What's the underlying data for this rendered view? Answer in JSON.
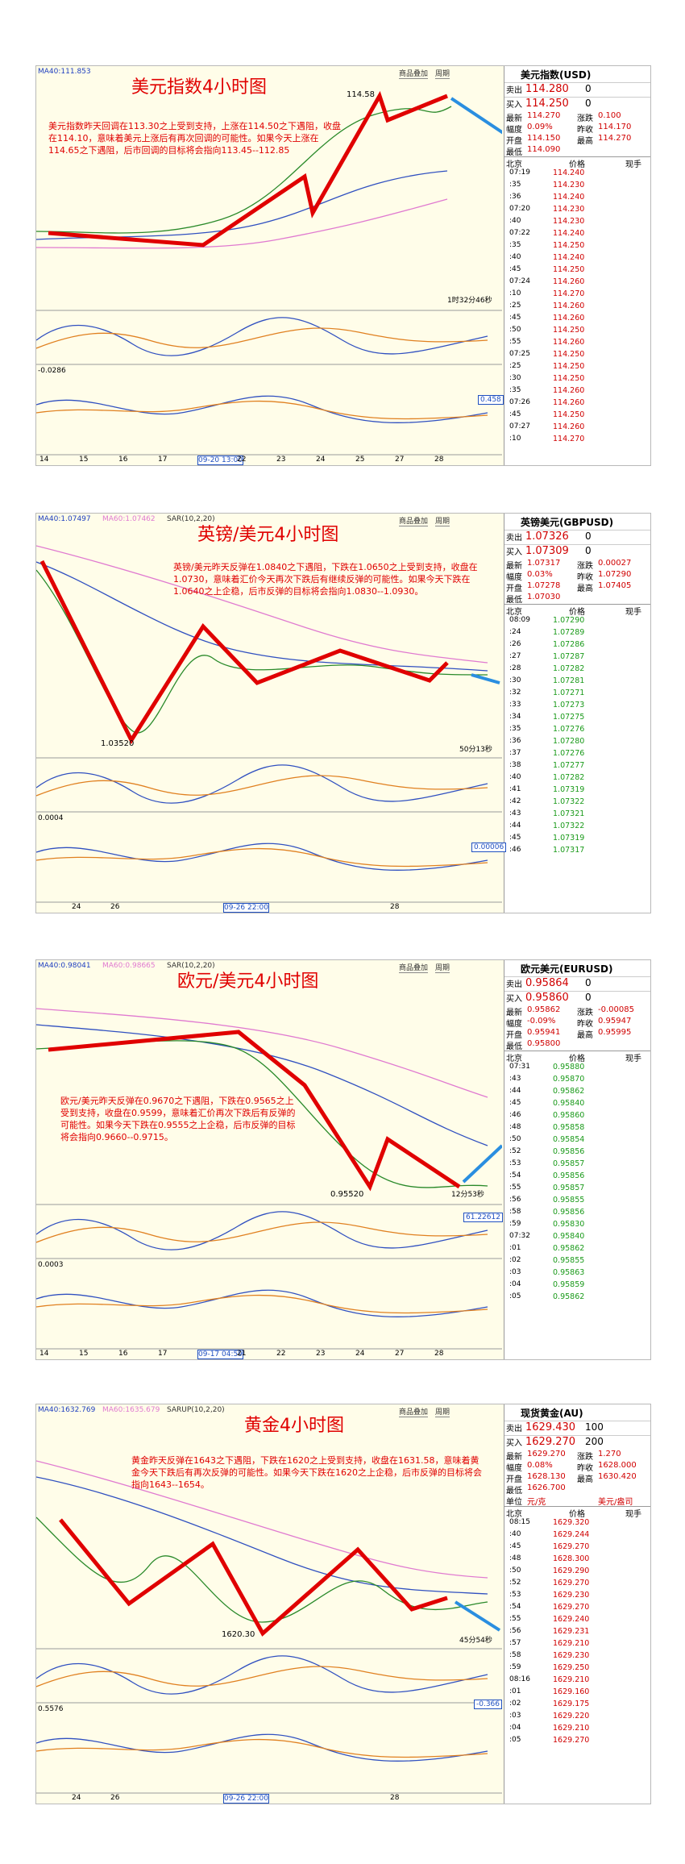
{
  "panels": [
    {
      "title": "美元指数4小时图",
      "indicators": [
        "MA40:111.853"
      ],
      "buttons": [
        "商品叠加",
        "周期"
      ],
      "annotation": "美元指数昨天回调在113.30之上受到支持，上涨在114.50之下遇阻，收盘在114.10，意味着美元上涨后有再次回调的可能性。如果今天上涨在114.65之下遇阻，后市回调的目标将会指向113.45--112.85",
      "price_label": "114.58",
      "timer": "1时32分46秒",
      "macd_label": "-0.0286",
      "box_label": "0.458",
      "x_labels": [
        "14",
        "15",
        "16",
        "17",
        "09-20 13:00",
        "22",
        "23",
        "24",
        "25",
        "27",
        "28"
      ],
      "quote": {
        "name": "美元指数(USD)",
        "sell": [
          "卖出",
          "114.280",
          "0"
        ],
        "buy": [
          "买入",
          "114.250",
          "0"
        ],
        "stats": [
          [
            [
              "最新",
              "114.270"
            ],
            [
              "涨跌",
              "0.100"
            ]
          ],
          [
            [
              "幅度",
              "0.09%"
            ],
            [
              "昨收",
              "114.170"
            ]
          ],
          [
            [
              "开盘",
              "114.150"
            ],
            [
              "最高",
              "114.270"
            ]
          ],
          [
            [
              "最低",
              "114.090"
            ]
          ]
        ],
        "header": [
          "北京",
          "价格",
          "现手"
        ],
        "tick_color": "#d00000",
        "ticks": [
          [
            "07:19",
            "114.240"
          ],
          [
            ":35",
            "114.230"
          ],
          [
            ":36",
            "114.240"
          ],
          [
            "07:20",
            "114.230"
          ],
          [
            ":40",
            "114.230"
          ],
          [
            "07:22",
            "114.240"
          ],
          [
            ":35",
            "114.250"
          ],
          [
            ":40",
            "114.240"
          ],
          [
            ":45",
            "114.250"
          ],
          [
            "07:24",
            "114.260"
          ],
          [
            ":10",
            "114.270"
          ],
          [
            ":25",
            "114.260"
          ],
          [
            ":45",
            "114.260"
          ],
          [
            ":50",
            "114.250"
          ],
          [
            ":55",
            "114.260"
          ],
          [
            "07:25",
            "114.250"
          ],
          [
            ":25",
            "114.250"
          ],
          [
            ":30",
            "114.250"
          ],
          [
            ":35",
            "114.260"
          ],
          [
            "07:26",
            "114.260"
          ],
          [
            ":45",
            "114.250"
          ],
          [
            "07:27",
            "114.260"
          ],
          [
            ":10",
            "114.270"
          ]
        ]
      }
    },
    {
      "title": "英镑/美元4小时图",
      "indicators": [
        "MA40:1.07497",
        "MA60:1.07462",
        "SAR(10,2,20)"
      ],
      "buttons": [
        "商品叠加",
        "周期"
      ],
      "annotation": "英镑/美元昨天反弹在1.0840之下遇阻，下跌在1.0650之上受到支持，收盘在1.0730，意味着汇价今天再次下跌后有继续反弹的可能性。如果今天下跌在1.0640之上企稳，后市反弹的目标将会指向1.0830--1.0930。",
      "price_label": "1.03520",
      "timer": "50分13秒",
      "macd_label": "0.0004",
      "box_label": "0.00006",
      "x_labels": [
        "24",
        "26",
        "09-26 22:00",
        "28"
      ],
      "quote": {
        "name": "英镑美元(GBPUSD)",
        "sell": [
          "卖出",
          "1.07326",
          "0"
        ],
        "buy": [
          "买入",
          "1.07309",
          "0"
        ],
        "stats": [
          [
            [
              "最新",
              "1.07317"
            ],
            [
              "涨跌",
              "0.00027"
            ]
          ],
          [
            [
              "幅度",
              "0.03%"
            ],
            [
              "昨收",
              "1.07290"
            ]
          ],
          [
            [
              "开盘",
              "1.07278"
            ],
            [
              "最高",
              "1.07405"
            ]
          ],
          [
            [
              "最低",
              "1.07030"
            ]
          ]
        ],
        "header": [
          "北京",
          "价格",
          "现手"
        ],
        "tick_color": "#1a9a1a",
        "ticks": [
          [
            "08:09",
            "1.07290"
          ],
          [
            ":24",
            "1.07289"
          ],
          [
            ":26",
            "1.07286"
          ],
          [
            ":27",
            "1.07287"
          ],
          [
            ":28",
            "1.07282"
          ],
          [
            ":30",
            "1.07281"
          ],
          [
            ":32",
            "1.07271"
          ],
          [
            ":33",
            "1.07273"
          ],
          [
            ":34",
            "1.07275"
          ],
          [
            ":35",
            "1.07276"
          ],
          [
            ":36",
            "1.07280"
          ],
          [
            ":37",
            "1.07276"
          ],
          [
            ":38",
            "1.07277"
          ],
          [
            ":40",
            "1.07282"
          ],
          [
            ":41",
            "1.07319"
          ],
          [
            ":42",
            "1.07322"
          ],
          [
            ":43",
            "1.07321"
          ],
          [
            ":44",
            "1.07322"
          ],
          [
            ":45",
            "1.07319"
          ],
          [
            ":46",
            "1.07317"
          ]
        ]
      }
    },
    {
      "title": "欧元/美元4小时图",
      "indicators": [
        "MA40:0.98041",
        "MA60:0.98665",
        "SAR(10,2,20)"
      ],
      "buttons": [
        "商品叠加",
        "周期"
      ],
      "annotation": "欧元/美元昨天反弹在0.9670之下遇阻，下跌在0.9565之上受到支持，收盘在0.9599，意味着汇价再次下跌后有反弹的可能性。如果今天下跌在0.9555之上企稳，后市反弹的目标将会指向0.9660--0.9715。",
      "price_label": "0.95520",
      "timer": "12分53秒",
      "macd_label": "0.0003",
      "box_label": "61.22612",
      "x_labels": [
        "14",
        "15",
        "16",
        "17",
        "09-17 04:59",
        "21",
        "22",
        "23",
        "24",
        "27",
        "28"
      ],
      "quote": {
        "name": "欧元美元(EURUSD)",
        "sell": [
          "卖出",
          "0.95864",
          "0"
        ],
        "buy": [
          "买入",
          "0.95860",
          "0"
        ],
        "stats": [
          [
            [
              "最新",
              "0.95862"
            ],
            [
              "涨跌",
              "-0.00085"
            ]
          ],
          [
            [
              "幅度",
              "-0.09%"
            ],
            [
              "昨收",
              "0.95947"
            ]
          ],
          [
            [
              "开盘",
              "0.95941"
            ],
            [
              "最高",
              "0.95995"
            ]
          ],
          [
            [
              "最低",
              "0.95800"
            ]
          ]
        ],
        "header": [
          "北京",
          "价格",
          "现手"
        ],
        "tick_color": "#1a9a1a",
        "ticks": [
          [
            "07:31",
            "0.95880"
          ],
          [
            ":43",
            "0.95870"
          ],
          [
            ":44",
            "0.95862"
          ],
          [
            ":45",
            "0.95840"
          ],
          [
            ":46",
            "0.95860"
          ],
          [
            ":48",
            "0.95858"
          ],
          [
            ":50",
            "0.95854"
          ],
          [
            ":52",
            "0.95856"
          ],
          [
            ":53",
            "0.95857"
          ],
          [
            ":54",
            "0.95856"
          ],
          [
            ":55",
            "0.95857"
          ],
          [
            ":56",
            "0.95855"
          ],
          [
            ":58",
            "0.95856"
          ],
          [
            ":59",
            "0.95830"
          ],
          [
            "07:32",
            "0.95840"
          ],
          [
            ":01",
            "0.95862"
          ],
          [
            ":02",
            "0.95855"
          ],
          [
            ":03",
            "0.95863"
          ],
          [
            ":04",
            "0.95859"
          ],
          [
            ":05",
            "0.95862"
          ]
        ]
      }
    },
    {
      "title": "黄金4小时图",
      "indicators": [
        "MA40:1632.769",
        "MA60:1635.679",
        "SARUP(10,2,20)"
      ],
      "buttons": [
        "商品叠加",
        "周期"
      ],
      "annotation": "黄金昨天反弹在1643之下遇阻，下跌在1620之上受到支持，收盘在1631.58，意味着黄金今天下跌后有再次反弹的可能性。如果今天下跌在1620之上企稳，后市反弹的目标将会指向1643--1654。",
      "price_label": "1620.30",
      "timer": "45分54秒",
      "macd_label": "0.5576",
      "box_label": "-0.366",
      "x_labels": [
        "24",
        "26",
        "09-26 22:00",
        "28"
      ],
      "quote": {
        "name": "现货黄金(AU)",
        "sell": [
          "卖出",
          "1629.430",
          "100"
        ],
        "buy": [
          "买入",
          "1629.270",
          "200"
        ],
        "stats": [
          [
            [
              "最新",
              "1629.270"
            ],
            [
              "涨跌",
              "1.270"
            ]
          ],
          [
            [
              "幅度",
              "0.08%"
            ],
            [
              "昨收",
              "1628.000"
            ]
          ],
          [
            [
              "开盘",
              "1628.130"
            ],
            [
              "最高",
              "1630.420"
            ]
          ],
          [
            [
              "最低",
              "1626.700"
            ]
          ],
          [
            [
              "单位",
              "元/克"
            ],
            [
              "",
              "美元/盎司"
            ]
          ]
        ],
        "header": [
          "北京",
          "价格",
          "现手"
        ],
        "tick_color": "#d00000",
        "ticks": [
          [
            "08:15",
            "1629.320"
          ],
          [
            ":40",
            "1629.244"
          ],
          [
            ":45",
            "1629.270"
          ],
          [
            ":48",
            "1628.300"
          ],
          [
            ":50",
            "1629.290"
          ],
          [
            ":52",
            "1629.270"
          ],
          [
            ":53",
            "1629.230"
          ],
          [
            ":54",
            "1629.270"
          ],
          [
            ":55",
            "1629.240"
          ],
          [
            ":56",
            "1629.231"
          ],
          [
            ":57",
            "1629.210"
          ],
          [
            ":58",
            "1629.230"
          ],
          [
            ":59",
            "1629.250"
          ],
          [
            "08:16",
            "1629.210"
          ],
          [
            ":01",
            "1629.160"
          ],
          [
            ":02",
            "1629.175"
          ],
          [
            ":03",
            "1629.220"
          ],
          [
            ":04",
            "1629.210"
          ],
          [
            ":05",
            "1629.270"
          ]
        ]
      }
    }
  ]
}
